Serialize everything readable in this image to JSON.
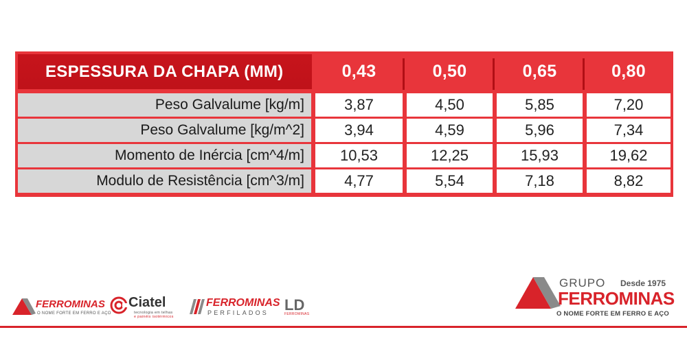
{
  "table": {
    "header": {
      "label": "ESPESSURA DA CHAPA (MM)",
      "values": [
        "0,43",
        "0,50",
        "0,65",
        "0,80"
      ]
    },
    "rows": [
      {
        "label": "Peso Galvalume [kg/m]",
        "values": [
          "3,87",
          "4,50",
          "5,85",
          "7,20"
        ]
      },
      {
        "label": "Peso Galvalume [kg/m^2]",
        "values": [
          "3,94",
          "4,59",
          "5,96",
          "7,34"
        ]
      },
      {
        "label": "Momento de Inércia [cm^4/m]",
        "values": [
          "10,53",
          "12,25",
          "15,93",
          "19,62"
        ]
      },
      {
        "label": "Modulo de Resistência [cm^3/m]",
        "values": [
          "4,77",
          "5,54",
          "7,18",
          "8,82"
        ]
      }
    ]
  },
  "footer": {
    "ferrominas": {
      "name": "FERROMINAS",
      "tagline": "O NOME FORTE EM FERRO E AÇO"
    },
    "ciatel": {
      "name": "Ciatel",
      "tagline1": "tecnologia em telhas",
      "tagline2": "e painéis isotérmicos"
    },
    "perfilados": {
      "name": "FERROMINAS",
      "sub": "PERFILADOS"
    },
    "ld": {
      "name": "LD",
      "sub": "FERROMINAS"
    },
    "grupo": {
      "grupo": "GRUPO",
      "desde": "Desde 1975",
      "name": "FERROMINAS",
      "tagline": "O NOME FORTE EM FERRO E AÇO"
    }
  },
  "colors": {
    "brand_red": "#d8232a",
    "header_red": "#c7141c",
    "label_gray": "#d7d7d7",
    "logo_gray": "#8a8a8a"
  }
}
